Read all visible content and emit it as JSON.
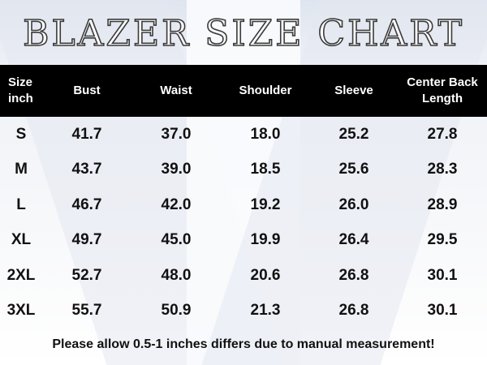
{
  "title": "BLAZER SIZE CHART",
  "header": {
    "size_line1": "Size",
    "size_line2": "inch",
    "bust": "Bust",
    "waist": "Waist",
    "shoulder": "Shoulder",
    "sleeve": "Sleeve",
    "length_line1": "Center Back",
    "length_line2": "Length"
  },
  "rows": [
    {
      "size": "S",
      "bust": "41.7",
      "waist": "37.0",
      "shoulder": "18.0",
      "sleeve": "25.2",
      "length": "27.8"
    },
    {
      "size": "M",
      "bust": "43.7",
      "waist": "39.0",
      "shoulder": "18.5",
      "sleeve": "25.6",
      "length": "28.3"
    },
    {
      "size": "L",
      "bust": "46.7",
      "waist": "42.0",
      "shoulder": "19.2",
      "sleeve": "26.0",
      "length": "28.9"
    },
    {
      "size": "XL",
      "bust": "49.7",
      "waist": "45.0",
      "shoulder": "19.9",
      "sleeve": "26.4",
      "length": "29.5"
    },
    {
      "size": "2XL",
      "bust": "52.7",
      "waist": "48.0",
      "shoulder": "20.6",
      "sleeve": "26.8",
      "length": "30.1"
    },
    {
      "size": "3XL",
      "bust": "55.7",
      "waist": "50.9",
      "shoulder": "21.3",
      "sleeve": "26.8",
      "length": "30.1"
    }
  ],
  "note": "Please allow 0.5-1 inches differs due to manual measurement!",
  "colors": {
    "header_bg": "#000000",
    "header_text": "#ffffff",
    "body_text": "#111111"
  }
}
